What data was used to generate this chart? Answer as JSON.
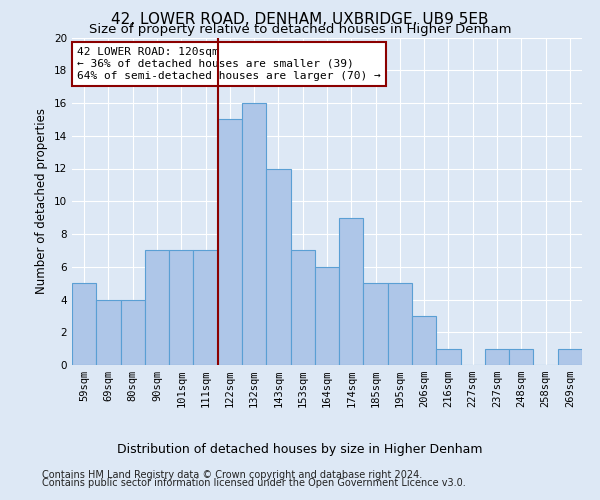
{
  "title": "42, LOWER ROAD, DENHAM, UXBRIDGE, UB9 5EB",
  "subtitle": "Size of property relative to detached houses in Higher Denham",
  "xlabel": "Distribution of detached houses by size in Higher Denham",
  "ylabel": "Number of detached properties",
  "categories": [
    "59sqm",
    "69sqm",
    "80sqm",
    "90sqm",
    "101sqm",
    "111sqm",
    "122sqm",
    "132sqm",
    "143sqm",
    "153sqm",
    "164sqm",
    "174sqm",
    "185sqm",
    "195sqm",
    "206sqm",
    "216sqm",
    "227sqm",
    "237sqm",
    "248sqm",
    "258sqm",
    "269sqm"
  ],
  "values": [
    5,
    4,
    4,
    7,
    7,
    7,
    15,
    16,
    12,
    7,
    6,
    9,
    5,
    5,
    3,
    1,
    0,
    1,
    1,
    0,
    1
  ],
  "bar_color": "#aec6e8",
  "bar_edge_color": "#5a9fd4",
  "vline_bin_index": 6,
  "vline_color": "#8b0000",
  "annotation_line1": "42 LOWER ROAD: 120sqm",
  "annotation_line2": "← 36% of detached houses are smaller (39)",
  "annotation_line3": "64% of semi-detached houses are larger (70) →",
  "annotation_box_color": "white",
  "annotation_box_edge_color": "#8b0000",
  "ylim": [
    0,
    20
  ],
  "yticks": [
    0,
    2,
    4,
    6,
    8,
    10,
    12,
    14,
    16,
    18,
    20
  ],
  "footer1": "Contains HM Land Registry data © Crown copyright and database right 2024.",
  "footer2": "Contains public sector information licensed under the Open Government Licence v3.0.",
  "bg_color": "#dde8f5",
  "grid_color": "#ffffff",
  "title_fontsize": 11,
  "subtitle_fontsize": 9.5,
  "xlabel_fontsize": 9,
  "ylabel_fontsize": 8.5,
  "tick_fontsize": 7.5,
  "annotation_fontsize": 8,
  "footer_fontsize": 7
}
